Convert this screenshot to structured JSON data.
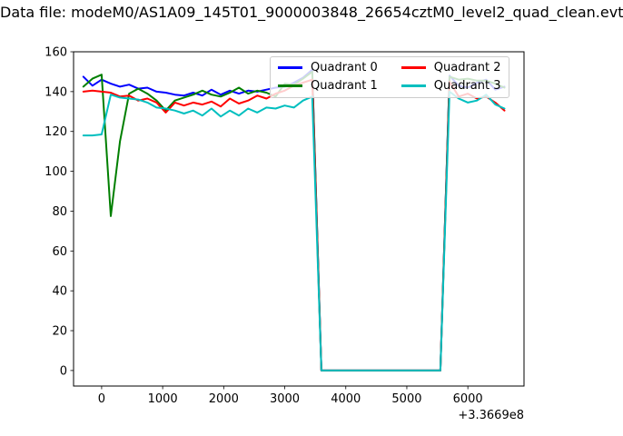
{
  "chart_data": {
    "type": "line",
    "title": "Data file: modeM0/AS1A09_145T01_9000003848_26654cztM0_level2_quad_clean.evt",
    "xlabel": "",
    "ylabel": "",
    "x_offset_label": "+3.3669e8",
    "xlim": [
      -460,
      6920
    ],
    "ylim": [
      -7.8,
      160
    ],
    "x_ticks": [
      0,
      1000,
      2000,
      3000,
      4000,
      5000,
      6000
    ],
    "y_ticks": [
      0,
      20,
      40,
      60,
      80,
      100,
      120,
      140,
      160
    ],
    "grid": false,
    "legend_position": "upper right",
    "legend_columns": 2,
    "x": [
      -300,
      -150,
      0,
      150,
      300,
      450,
      600,
      750,
      900,
      1050,
      1200,
      1350,
      1500,
      1650,
      1800,
      1950,
      2100,
      2250,
      2400,
      2550,
      2700,
      2850,
      3000,
      3150,
      3300,
      3450,
      3600,
      3750,
      3900,
      4050,
      4200,
      4350,
      4500,
      4650,
      4800,
      4950,
      5100,
      5250,
      5400,
      5550,
      5700,
      5850,
      6000,
      6150,
      6300,
      6450,
      6600
    ],
    "series": [
      {
        "name": "Quadrant 0",
        "color": "#0000ff",
        "values": [
          147.5,
          143,
          146,
          144,
          142.5,
          143.5,
          141.5,
          142,
          140,
          139.5,
          138.5,
          138,
          139.5,
          138,
          141,
          138.5,
          140.5,
          139,
          140.5,
          140,
          141,
          142,
          142.5,
          144.5,
          147,
          151,
          0,
          0,
          0,
          0,
          0,
          0,
          0,
          0,
          0,
          0,
          0,
          0,
          0,
          0,
          148,
          143,
          142,
          144.5,
          146,
          141,
          142.5
        ]
      },
      {
        "name": "Quadrant 1",
        "color": "#007f00",
        "values": [
          142.5,
          146.5,
          148.5,
          77.5,
          115,
          139,
          141.5,
          139,
          135.5,
          130.5,
          135.5,
          137,
          138.5,
          140.5,
          138.5,
          137.5,
          139.5,
          142,
          139,
          140.5,
          139.5,
          137.5,
          144,
          143.5,
          146.5,
          150,
          0,
          0,
          0,
          0,
          0,
          0,
          0,
          0,
          0,
          0,
          0,
          0,
          0,
          0,
          147.5,
          146,
          146.5,
          145.5,
          145.5,
          144,
          142
        ]
      },
      {
        "name": "Quadrant 2",
        "color": "#ff0000",
        "values": [
          140,
          140.5,
          140,
          139.5,
          137.5,
          138,
          135.5,
          136.5,
          134.5,
          129.5,
          134.5,
          133,
          134.5,
          133.5,
          135,
          132.5,
          136.5,
          134,
          135.5,
          138,
          136.5,
          139,
          140.5,
          143,
          144.5,
          146,
          0,
          0,
          0,
          0,
          0,
          0,
          0,
          0,
          0,
          0,
          0,
          0,
          0,
          0,
          145,
          137.5,
          139,
          136.5,
          137.5,
          134.5,
          130.5
        ]
      },
      {
        "name": "Quadrant 3",
        "color": "#00bfbf",
        "values": [
          118,
          118,
          118.5,
          138.5,
          137,
          136.5,
          136,
          134.5,
          132,
          131.5,
          130.5,
          129,
          130.5,
          128,
          131.5,
          127.5,
          130.5,
          128,
          131.5,
          129.5,
          132,
          131.5,
          133,
          132,
          135.5,
          137.5,
          0,
          0,
          0,
          0,
          0,
          0,
          0,
          0,
          0,
          0,
          0,
          0,
          0,
          0,
          140,
          136.5,
          134.5,
          135.5,
          138.5,
          133.5,
          131.5
        ]
      }
    ]
  },
  "colors": {
    "background": "#ffffff",
    "axes": "#000000",
    "text": "#000000",
    "legend_border": "#cccccc"
  }
}
